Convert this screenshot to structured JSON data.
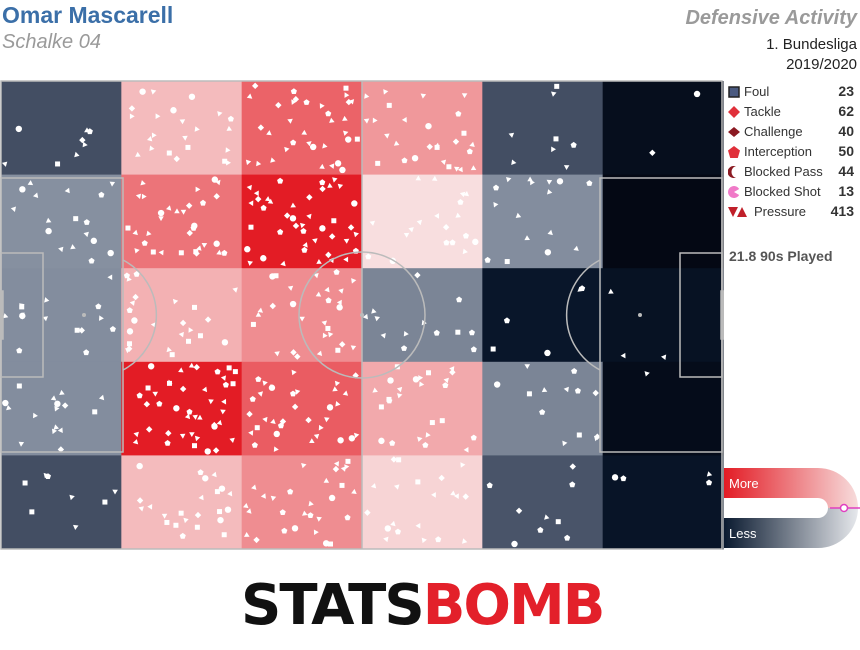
{
  "header": {
    "player": "Omar Mascarell",
    "team": "Schalke 04",
    "title": "Defensive Activity",
    "competition": "1. Bundesliga",
    "season": "2019/2020"
  },
  "legend": [
    {
      "label": "Foul",
      "count": "23",
      "icon": "square-outline-icon",
      "color": "#4a5a80"
    },
    {
      "label": "Tackle",
      "count": "62",
      "icon": "diamond-icon",
      "color": "#e0303a"
    },
    {
      "label": "Challenge",
      "count": "40",
      "icon": "diamond-dark-icon",
      "color": "#8b1a22"
    },
    {
      "label": "Interception",
      "count": "50",
      "icon": "pentagon-icon",
      "color": "#e0303a"
    },
    {
      "label": "Blocked Pass",
      "count": "44",
      "icon": "crescent-icon",
      "color": "#8b1a22"
    },
    {
      "label": "Blocked Shot",
      "count": "13",
      "icon": "pacman-icon",
      "color": "#f07ac8"
    },
    {
      "label": "Pressure",
      "count": "413",
      "icon": "double-triangle-icon",
      "color": "#c0202a"
    }
  ],
  "played": "21.8 90s Played",
  "scale": {
    "more": "More",
    "less": "Less"
  },
  "logo": {
    "part1": "STATS",
    "part2": "BOMB"
  },
  "colors": {
    "more": "#e31c25",
    "less": "#0a1a30",
    "accent": "#3b6fa8"
  },
  "chart_data": {
    "type": "heatmap",
    "grid": {
      "columns": 6,
      "rows": 5
    },
    "intensity": [
      [
        0.2,
        0.55,
        0.8,
        0.65,
        0.2,
        0.05
      ],
      [
        0.4,
        0.75,
        1.0,
        0.45,
        0.38,
        0.0
      ],
      [
        0.38,
        0.58,
        0.68,
        0.32,
        0.12,
        0.08
      ],
      [
        0.38,
        1.0,
        0.82,
        0.6,
        0.32,
        0.03
      ],
      [
        0.2,
        0.55,
        0.68,
        0.48,
        0.22,
        0.1
      ]
    ],
    "grid_lines": false,
    "legend_position": "right"
  }
}
